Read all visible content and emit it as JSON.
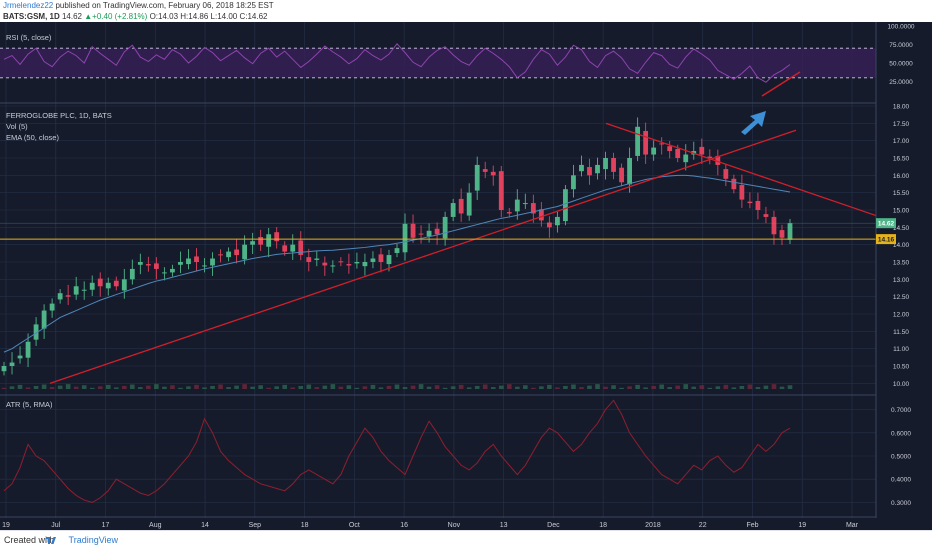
{
  "header": {
    "author": "Jrmelendez22",
    "published_text": "published on TradingView.com, February 06, 2018 18:25 EST",
    "symbol": "BATS:GSM, 1D",
    "last": "14.62",
    "change": "+0.40 (+2.81%)",
    "ohlc": {
      "o_label": "O:",
      "o": "14.03",
      "h_label": "H:",
      "h": "14.86",
      "l_label": "L:",
      "l": "14.00",
      "c_label": "C:",
      "c": "14.62"
    }
  },
  "footer": {
    "created_with": "Created with",
    "brand": "TradingView"
  },
  "colors": {
    "bg": "#161b2c",
    "grid": "#243047",
    "up": "#4fb589",
    "down": "#e0425d",
    "trend": "#d21f2a",
    "ema": "#4f86b8",
    "rsi": "#8e44ad",
    "atr": "#8e1f2e",
    "hline": "#e4b21c",
    "arrow": "#3d8fd6"
  },
  "chart_data": [
    {
      "type": "line",
      "title": "RSI (5, close)",
      "y_ticks": [
        "100.0000",
        "75.0000",
        "50.0000",
        "25.0000"
      ],
      "ylim": [
        0,
        100
      ],
      "bands": [
        30,
        70
      ],
      "series": [
        {
          "values": [
            55,
            60,
            48,
            62,
            70,
            52,
            45,
            58,
            66,
            60,
            50,
            72,
            63,
            55,
            47,
            65,
            74,
            58,
            52,
            61,
            55,
            68,
            62,
            50,
            59,
            71,
            64,
            53,
            60,
            67,
            57,
            49,
            63,
            70,
            58,
            66,
            55,
            44,
            52,
            62,
            73,
            65,
            58,
            49,
            56,
            68,
            60,
            54,
            62,
            76,
            64,
            51,
            45,
            58,
            67,
            72,
            61,
            52,
            47,
            60,
            70,
            63,
            55,
            45,
            30,
            38,
            55,
            68,
            62,
            47,
            58,
            74,
            68,
            52,
            44,
            60,
            66,
            57,
            42,
            36,
            51,
            64,
            60,
            48,
            43,
            58,
            69,
            62,
            54,
            40,
            34,
            28,
            36,
            46,
            30,
            24,
            34,
            40,
            48
          ]
        }
      ]
    },
    {
      "type": "candlestick",
      "title": "FERROGLOBE PLC, 1D, BATS",
      "indicators": [
        "Vol (5)",
        "EMA (50, close)"
      ],
      "ylim": [
        9.75,
        18.0
      ],
      "y_ticks": [
        "18.00",
        "17.50",
        "17.00",
        "16.50",
        "16.00",
        "15.50",
        "15.00",
        "14.50",
        "14.00",
        "13.50",
        "13.00",
        "12.50",
        "12.00",
        "11.50",
        "11.00",
        "10.50",
        "10.00"
      ],
      "price_labels": [
        "14.62",
        "14.16"
      ],
      "close": [
        10.5,
        10.6,
        10.8,
        11.2,
        11.7,
        12.1,
        12.3,
        12.6,
        12.5,
        12.8,
        12.7,
        12.9,
        12.8,
        12.9,
        12.8,
        13.0,
        13.3,
        13.5,
        13.4,
        13.3,
        13.2,
        13.3,
        13.5,
        13.6,
        13.5,
        13.4,
        13.6,
        13.7,
        13.8,
        13.7,
        14.0,
        14.1,
        14.0,
        14.3,
        14.1,
        13.8,
        14.0,
        13.7,
        13.5,
        13.6,
        13.4,
        13.4,
        13.5,
        13.4,
        13.5,
        13.5,
        13.6,
        13.5,
        13.7,
        13.9,
        14.6,
        14.2,
        14.3,
        14.4,
        14.3,
        14.8,
        15.2,
        14.9,
        15.5,
        16.3,
        16.1,
        16.0,
        15.0,
        14.9,
        15.3,
        15.2,
        14.9,
        14.7,
        14.5,
        14.8,
        15.6,
        16.0,
        16.3,
        16.0,
        16.3,
        16.5,
        16.1,
        15.8,
        16.5,
        17.4,
        16.6,
        16.8,
        16.9,
        16.7,
        16.5,
        16.6,
        16.7,
        16.6,
        16.5,
        16.3,
        15.9,
        15.6,
        15.3,
        15.2,
        15.0,
        14.8,
        14.3,
        14.2,
        14.62
      ],
      "ema": [
        10.9,
        11.0,
        11.15,
        11.3,
        11.45,
        11.6,
        11.75,
        11.9,
        12.0,
        12.1,
        12.2,
        12.3,
        12.4,
        12.48,
        12.56,
        12.64,
        12.72,
        12.8,
        12.88,
        12.95,
        13.0,
        13.06,
        13.12,
        13.18,
        13.24,
        13.3,
        13.35,
        13.4,
        13.45,
        13.5,
        13.55,
        13.6,
        13.64,
        13.68,
        13.72,
        13.74,
        13.76,
        13.78,
        13.8,
        13.82,
        13.83,
        13.84,
        13.86,
        13.88,
        13.9,
        13.92,
        13.95,
        13.98,
        14.0,
        14.04,
        14.08,
        14.13,
        14.18,
        14.23,
        14.28,
        14.34,
        14.4,
        14.46,
        14.52,
        14.58,
        14.64,
        14.7,
        14.76,
        14.8,
        14.85,
        14.9,
        14.95,
        15.0,
        15.05,
        15.1,
        15.18,
        15.26,
        15.34,
        15.42,
        15.5,
        15.58,
        15.64,
        15.7,
        15.76,
        15.82,
        15.88,
        15.92,
        15.96,
        15.98,
        16.0,
        16.0,
        15.98,
        15.95,
        15.92,
        15.88,
        15.84,
        15.8,
        15.76,
        15.72,
        15.68,
        15.64,
        15.6,
        15.56,
        15.52
      ]
    },
    {
      "type": "line",
      "title": "ATR (5, RMA)",
      "y_ticks": [
        "0.7000",
        "0.6000",
        "0.5000",
        "0.4000",
        "0.3000"
      ],
      "ylim": [
        0.25,
        0.75
      ],
      "series": [
        {
          "values": [
            0.35,
            0.38,
            0.45,
            0.55,
            0.5,
            0.48,
            0.44,
            0.4,
            0.36,
            0.33,
            0.31,
            0.3,
            0.32,
            0.35,
            0.4,
            0.38,
            0.36,
            0.34,
            0.33,
            0.35,
            0.38,
            0.42,
            0.46,
            0.5,
            0.56,
            0.66,
            0.6,
            0.52,
            0.48,
            0.45,
            0.42,
            0.4,
            0.38,
            0.37,
            0.36,
            0.35,
            0.38,
            0.42,
            0.44,
            0.42,
            0.4,
            0.38,
            0.42,
            0.5,
            0.56,
            0.62,
            0.58,
            0.52,
            0.48,
            0.45,
            0.42,
            0.5,
            0.58,
            0.65,
            0.6,
            0.54,
            0.5,
            0.46,
            0.44,
            0.47,
            0.52,
            0.55,
            0.5,
            0.46,
            0.42,
            0.46,
            0.52,
            0.58,
            0.62,
            0.6,
            0.56,
            0.52,
            0.55,
            0.6,
            0.64,
            0.7,
            0.74,
            0.68,
            0.6,
            0.55,
            0.5,
            0.46,
            0.42,
            0.4,
            0.38,
            0.42,
            0.46,
            0.44,
            0.48,
            0.5,
            0.46,
            0.43,
            0.45,
            0.5,
            0.55,
            0.52,
            0.55,
            0.6,
            0.62
          ]
        }
      ]
    }
  ],
  "x_axis": {
    "labels": [
      "19",
      "Jul",
      "17",
      "Aug",
      "14",
      "Sep",
      "18",
      "Oct",
      "16",
      "Nov",
      "13",
      "Dec",
      "18",
      "2018",
      "22",
      "Feb",
      "19",
      "Mar"
    ]
  }
}
